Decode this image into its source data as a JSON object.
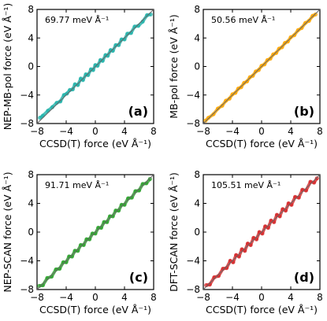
{
  "chart_data": [
    {
      "type": "scatter",
      "panel_label": "(a)",
      "annotation": "69.77 meV Å⁻¹",
      "xlabel": "CCSD(T) force (eV Å⁻¹)",
      "ylabel": "NEP-MB-pol force (eV Å⁻¹)",
      "xlim": [
        -8,
        8
      ],
      "ylim": [
        -8,
        8
      ],
      "xticks": [
        -8,
        -4,
        0,
        4,
        8
      ],
      "yticks": [
        -8,
        -4,
        0,
        4,
        8
      ],
      "color": "#20b2aa",
      "reference_line": "y = x",
      "series": [
        {
          "x": [
            -7.6,
            -7.2,
            -6.5,
            -5.9,
            -5.3,
            -4.8,
            -4.3,
            -3.9,
            -3.5,
            -3.1,
            -2.8,
            -2.4,
            -2.0,
            -1.7,
            -1.3,
            -1.0,
            -0.6,
            -0.3,
            0.0,
            0.3,
            0.7,
            1.0,
            1.4,
            1.7,
            2.1,
            2.4,
            2.8,
            3.2,
            3.6,
            4.0,
            4.4,
            4.9,
            5.4,
            5.9,
            6.5,
            7.1,
            7.6
          ],
          "y": [
            -7.2,
            -6.9,
            -6.2,
            -5.7,
            -5.1,
            -4.9,
            -4.0,
            -3.8,
            -3.3,
            -3.2,
            -2.5,
            -2.6,
            -1.7,
            -1.9,
            -1.1,
            -1.2,
            -0.4,
            -0.5,
            0.2,
            0.1,
            0.9,
            0.8,
            1.6,
            1.5,
            2.3,
            2.2,
            3.0,
            3.0,
            3.8,
            3.8,
            4.6,
            4.7,
            5.6,
            5.7,
            6.3,
            7.2,
            7.3
          ]
        }
      ]
    },
    {
      "type": "scatter",
      "panel_label": "(b)",
      "annotation": "50.56 meV Å⁻¹",
      "xlabel": "CCSD(T) force (eV Å⁻¹)",
      "ylabel": "MB-pol force (eV Å⁻¹)",
      "xlim": [
        -8,
        8
      ],
      "ylim": [
        -8,
        8
      ],
      "xticks": [
        -8,
        -4,
        0,
        4,
        8
      ],
      "yticks": [
        -8,
        -4,
        0,
        4,
        8
      ],
      "color": "#ffa500",
      "reference_line": "y = x",
      "series": [
        {
          "x": [
            -7.7,
            -7.3,
            -6.6,
            -6.0,
            -5.4,
            -4.9,
            -4.4,
            -4.0,
            -3.6,
            -3.2,
            -2.8,
            -2.4,
            -2.0,
            -1.6,
            -1.2,
            -0.8,
            -0.4,
            0.0,
            0.4,
            0.8,
            1.2,
            1.6,
            2.0,
            2.4,
            2.8,
            3.2,
            3.6,
            4.0,
            4.5,
            5.0,
            5.5,
            6.0,
            6.5,
            7.0,
            7.4
          ],
          "y": [
            -7.6,
            -7.2,
            -6.7,
            -5.9,
            -5.5,
            -4.8,
            -4.5,
            -3.9,
            -3.7,
            -3.1,
            -2.9,
            -2.3,
            -2.1,
            -1.5,
            -1.3,
            -0.7,
            -0.5,
            0.1,
            0.3,
            0.9,
            1.1,
            1.7,
            1.9,
            2.5,
            2.7,
            3.3,
            3.5,
            4.1,
            4.4,
            5.1,
            5.4,
            6.1,
            6.4,
            7.1,
            7.3
          ]
        }
      ]
    },
    {
      "type": "scatter",
      "panel_label": "(c)",
      "annotation": "91.71 meV Å⁻¹",
      "xlabel": "CCSD(T) force (eV Å⁻¹)",
      "ylabel": "NEP-SCAN force (eV Å⁻¹)",
      "xlim": [
        -8,
        8
      ],
      "ylim": [
        -8,
        8
      ],
      "xticks": [
        -8,
        -4,
        0,
        4,
        8
      ],
      "yticks": [
        -8,
        -4,
        0,
        4,
        8
      ],
      "color": "#2ca02c",
      "reference_line": "y = x",
      "series": [
        {
          "x": [
            -7.7,
            -7.2,
            -6.6,
            -6.0,
            -5.4,
            -4.9,
            -4.4,
            -4.0,
            -3.6,
            -3.2,
            -2.8,
            -2.4,
            -2.0,
            -1.6,
            -1.2,
            -0.8,
            -0.4,
            0.0,
            0.4,
            0.8,
            1.2,
            1.6,
            2.0,
            2.4,
            2.8,
            3.2,
            3.6,
            4.0,
            4.5,
            5.0,
            5.5,
            6.0,
            6.5,
            7.0,
            7.5
          ],
          "y": [
            -7.5,
            -7.4,
            -6.4,
            -6.2,
            -5.2,
            -5.1,
            -4.2,
            -4.2,
            -3.4,
            -3.4,
            -2.6,
            -2.6,
            -1.8,
            -1.8,
            -1.0,
            -1.0,
            -0.2,
            -0.2,
            0.6,
            0.6,
            1.4,
            1.4,
            2.2,
            2.2,
            3.0,
            3.0,
            3.8,
            3.8,
            4.7,
            4.8,
            5.7,
            5.8,
            6.7,
            6.8,
            7.4
          ]
        }
      ]
    },
    {
      "type": "scatter",
      "panel_label": "(d)",
      "annotation": "105.51 meV Å⁻¹",
      "xlabel": "CCSD(T) force (eV Å⁻¹)",
      "ylabel": "DFT-SCAN force (eV Å⁻¹)",
      "xlim": [
        -8,
        8
      ],
      "ylim": [
        -8,
        8
      ],
      "xticks": [
        -8,
        -4,
        0,
        4,
        8
      ],
      "yticks": [
        -8,
        -4,
        0,
        4,
        8
      ],
      "color": "#d62728",
      "reference_line": "y = x",
      "series": [
        {
          "x": [
            -7.6,
            -7.1,
            -6.5,
            -5.9,
            -5.3,
            -4.8,
            -4.3,
            -3.9,
            -3.5,
            -3.1,
            -2.7,
            -2.3,
            -1.9,
            -1.5,
            -1.1,
            -0.7,
            -0.3,
            0.1,
            0.5,
            0.9,
            1.3,
            1.7,
            2.1,
            2.5,
            2.9,
            3.3,
            3.7,
            4.1,
            4.6,
            5.1,
            5.6,
            6.1,
            6.7,
            7.2,
            7.6
          ],
          "y": [
            -7.4,
            -7.3,
            -6.3,
            -6.1,
            -5.1,
            -5.0,
            -4.0,
            -4.2,
            -3.2,
            -3.4,
            -2.4,
            -2.6,
            -1.6,
            -1.8,
            -0.8,
            -1.0,
            0.0,
            -0.2,
            0.8,
            0.6,
            1.6,
            1.4,
            2.4,
            2.2,
            3.2,
            3.0,
            4.0,
            3.8,
            4.9,
            4.8,
            5.9,
            5.8,
            7.0,
            6.9,
            7.5
          ]
        }
      ]
    }
  ]
}
